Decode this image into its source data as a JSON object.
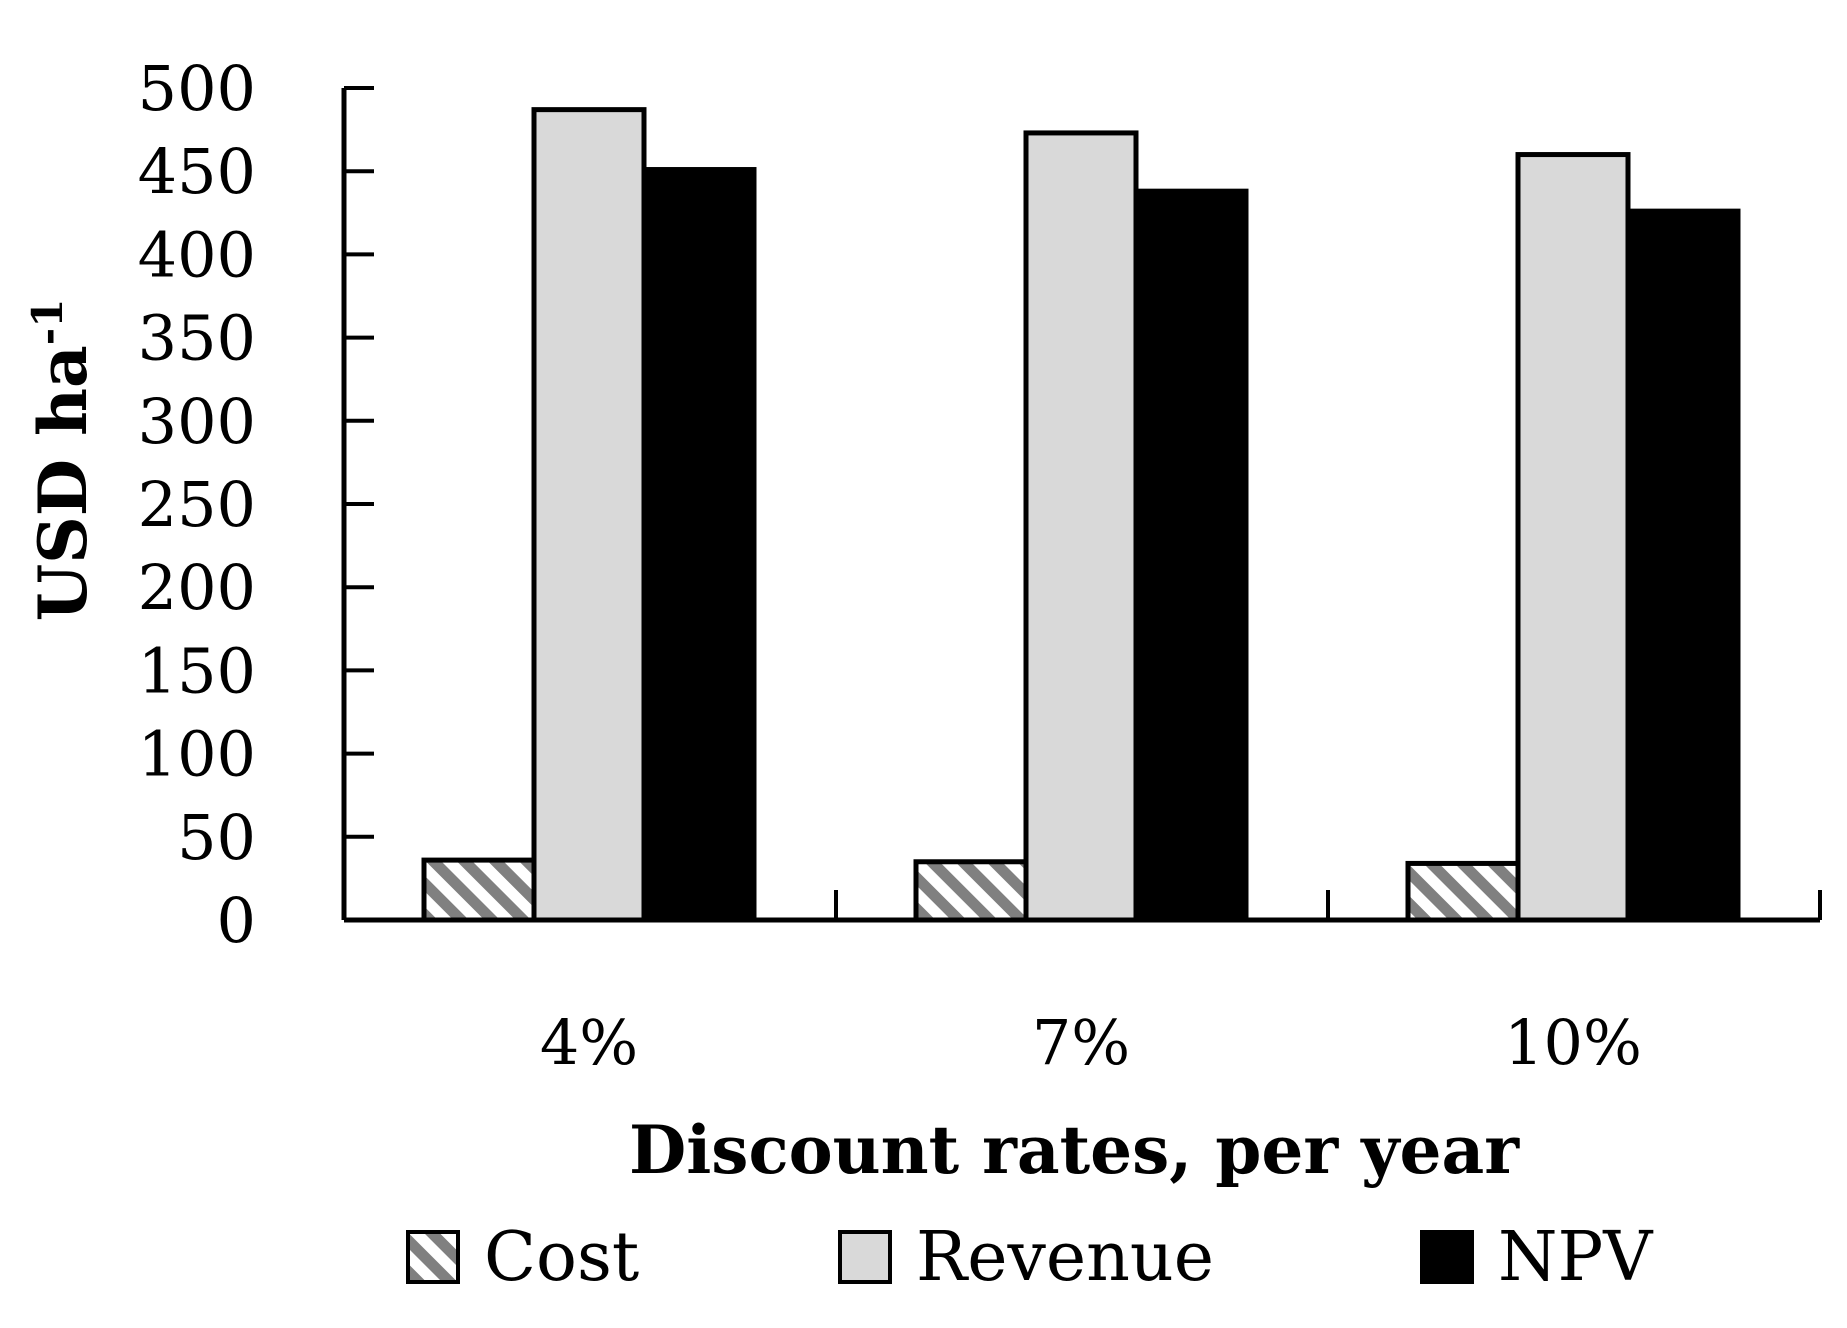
{
  "chart_data": {
    "type": "bar",
    "categories": [
      "4%",
      "7%",
      "10%"
    ],
    "series": [
      {
        "name": "Cost",
        "values": [
          36,
          35,
          34
        ],
        "color": "#ffffff",
        "pattern": "diagonal-hatch-gray"
      },
      {
        "name": "Revenue",
        "values": [
          487,
          473,
          460
        ],
        "color": "#d9d9d9"
      },
      {
        "name": "NPV",
        "values": [
          451,
          438,
          426
        ],
        "color": "#000000"
      }
    ],
    "ylim": [
      0,
      500
    ],
    "yticks": [
      0,
      50,
      100,
      150,
      200,
      250,
      300,
      350,
      400,
      450,
      500
    ],
    "xlabel": "Discount rates, per year",
    "ylabel": "USD ha",
    "ylabel_superscript": "-1",
    "legend_position": "bottom",
    "grid": false,
    "bar_outline": "#000000",
    "hatch_color": "#808080"
  }
}
